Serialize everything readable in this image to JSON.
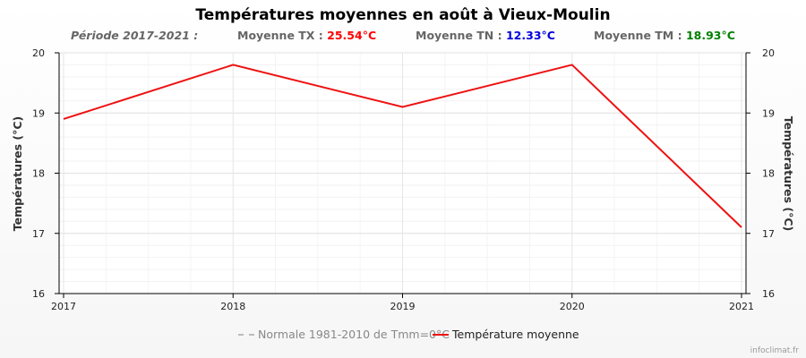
{
  "header": {
    "title": "Températures moyennes en août à Vieux-Moulin",
    "period": "Période 2017-2021 :",
    "tx_label": "Moyenne TX :",
    "tx_value": "25.54°C",
    "tn_label": "Moyenne TN :",
    "tn_value": "12.33°C",
    "tm_label": "Moyenne TM :",
    "tm_value": "18.93°C"
  },
  "colors": {
    "series": "#ee1111",
    "tx": "#ff0000",
    "tn": "#0000dd",
    "tm": "#008000"
  },
  "chart_data": {
    "type": "line",
    "title": "Températures moyennes en août à Vieux-Moulin",
    "x": [
      2017,
      2018,
      2019,
      2020,
      2021
    ],
    "series": [
      {
        "name": "Température moyenne",
        "values": [
          18.9,
          19.8,
          19.1,
          19.8,
          17.1
        ]
      }
    ],
    "ylabel_left": "Températures (°C)",
    "ylabel_right": "Températures (°C)",
    "ylim": [
      16,
      20
    ],
    "yticks": [
      16,
      17,
      18,
      19,
      20
    ],
    "xticks": [
      "2017",
      "2018",
      "2019",
      "2020",
      "2021"
    ],
    "grid": true,
    "legend_position": "bottom",
    "legend": [
      {
        "name": "Normale 1981-2010 de Tmm=0°C",
        "style": "dashed"
      },
      {
        "name": "Température moyenne",
        "style": "solid"
      }
    ]
  },
  "footer": {
    "credit": "infoclimat.fr"
  }
}
